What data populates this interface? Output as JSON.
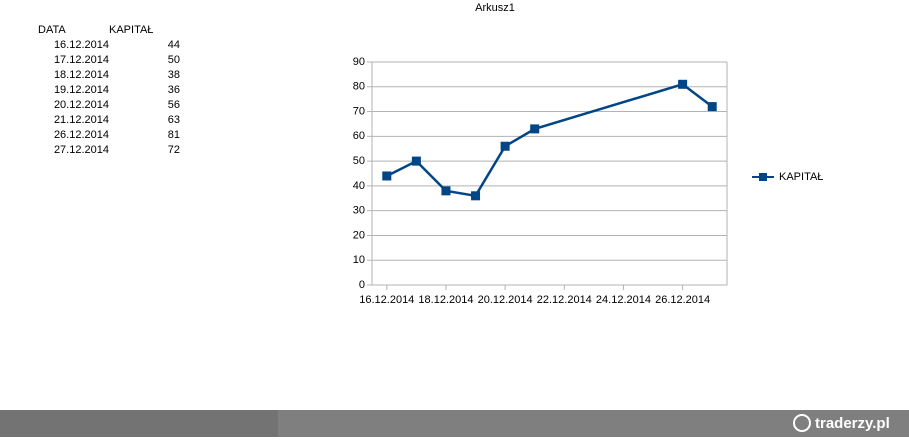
{
  "sheet_title": "Arkusz1",
  "table": {
    "headers": [
      "DATA",
      "KAPITAŁ"
    ],
    "rows": [
      [
        "16.12.2014",
        44
      ],
      [
        "17.12.2014",
        50
      ],
      [
        "18.12.2014",
        38
      ],
      [
        "19.12.2014",
        36
      ],
      [
        "20.12.2014",
        56
      ],
      [
        "21.12.2014",
        63
      ],
      [
        "26.12.2014",
        81
      ],
      [
        "27.12.2014",
        72
      ]
    ]
  },
  "chart_data": {
    "type": "line",
    "x": [
      "2014-12-16",
      "2014-12-17",
      "2014-12-18",
      "2014-12-19",
      "2014-12-20",
      "2014-12-21",
      "2014-12-26",
      "2014-12-27"
    ],
    "series": [
      {
        "name": "KAPITAŁ",
        "color": "#004586",
        "values": [
          44,
          50,
          38,
          36,
          56,
          63,
          81,
          72
        ]
      }
    ],
    "xlim": [
      "2014-12-15T12:00",
      "2014-12-27T12:00"
    ],
    "xticks": [
      {
        "value": "2014-12-16",
        "label": "16.12.2014"
      },
      {
        "value": "2014-12-18",
        "label": "18.12.2014"
      },
      {
        "value": "2014-12-20",
        "label": "20.12.2014"
      },
      {
        "value": "2014-12-22",
        "label": "22.12.2014"
      },
      {
        "value": "2014-12-24",
        "label": "24.12.2014"
      },
      {
        "value": "2014-12-26",
        "label": "26.12.2014"
      }
    ],
    "ylim": [
      0,
      90
    ],
    "yticks": [
      0,
      10,
      20,
      30,
      40,
      50,
      60,
      70,
      80,
      90
    ],
    "grid": true,
    "legend": "right"
  },
  "watermark": "traderzy.pl"
}
